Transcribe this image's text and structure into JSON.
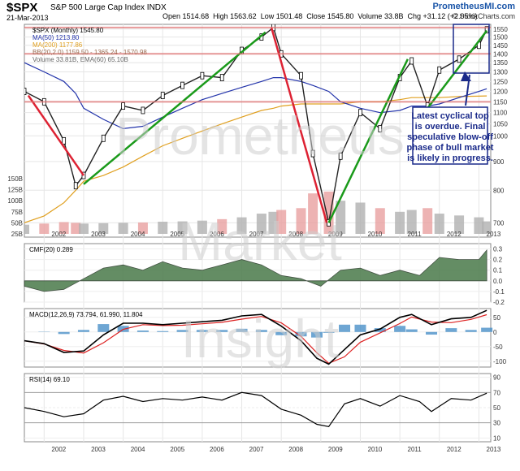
{
  "header": {
    "symbol": "$SPX",
    "name": "S&P 500 Large Cap Index  INDX",
    "date": "21-Mar-2013",
    "open_label": "Open",
    "open": "1514.68",
    "high_label": "High",
    "high": "1563.62",
    "low_label": "Low",
    "low": "1501.48",
    "close_label": "Close",
    "close": "1545.80",
    "volume_label": "Volume",
    "volume": "33.8B",
    "chg_label": "Chg",
    "chg": "+31.12 (+2.05%)",
    "site": "PrometheusMI.com",
    "source": "© StockCharts.com"
  },
  "watermark": [
    "Prometheus",
    "Market",
    "Insight"
  ],
  "annotation": [
    "Latest cyclical top",
    "is overdue. Final",
    "speculative blow-off",
    "phase of bull market",
    "is likely in progress."
  ],
  "colors": {
    "ma50": "#2233aa",
    "ma200": "#e0a020",
    "bb": "#9a6a50",
    "trend_up": "#1a9a1a",
    "trend_down": "#dd2233",
    "volume": "#b0b0b0",
    "cmf": "#4a7a4a",
    "macd_hist": "#4a90c8",
    "signal": "#dd2222"
  },
  "chart_data": [
    {
      "type": "line",
      "title": "$SPX (Monthly) 1545.80",
      "legend": [
        "$SPX (Monthly) 1545.80",
        "MA(50) 1213.80",
        "MA(200) 1177.86",
        "BB(20,2.0) 1159.50 - 1365.24 - 1570.98",
        "Volume 33.81B, EMA(60) 65.10B"
      ],
      "x_ticks": [
        "2002",
        "2003",
        "2004",
        "2005",
        "2006",
        "2007",
        "2008",
        "2009",
        "2010",
        "2011",
        "2012",
        "2013"
      ],
      "y_ticks": [
        700,
        800,
        900,
        1000,
        1050,
        1100,
        1150,
        1200,
        1250,
        1300,
        1350,
        1400,
        1450,
        1500,
        1550
      ],
      "volume_ticks": [
        "25B",
        "50B",
        "75B",
        "100B",
        "125B",
        "150B"
      ],
      "scale": "log",
      "ylim": [
        660,
        1580
      ],
      "x": [
        2001.5,
        2002.0,
        2002.5,
        2002.8,
        2003.0,
        2003.5,
        2004.0,
        2004.5,
        2005.0,
        2005.5,
        2006.0,
        2006.5,
        2007.0,
        2007.5,
        2007.8,
        2008.0,
        2008.5,
        2008.8,
        2009.2,
        2009.5,
        2010.0,
        2010.5,
        2011.0,
        2011.3,
        2011.7,
        2012.0,
        2012.5,
        2013.0,
        2013.2
      ],
      "close": [
        1200,
        1150,
        980,
        815,
        850,
        990,
        1130,
        1110,
        1180,
        1230,
        1280,
        1270,
        1420,
        1500,
        1560,
        1400,
        1280,
        930,
        700,
        920,
        1100,
        1030,
        1270,
        1360,
        1130,
        1310,
        1370,
        1450,
        1545
      ],
      "ma50": [
        1350,
        1300,
        1250,
        1190,
        1120,
        1070,
        1030,
        1040,
        1080,
        1120,
        1160,
        1190,
        1220,
        1250,
        1270,
        1270,
        1250,
        1230,
        1200,
        1150,
        1120,
        1100,
        1110,
        1130,
        1130,
        1140,
        1170,
        1200,
        1213
      ],
      "ma200": [
        700,
        720,
        760,
        800,
        830,
        850,
        880,
        920,
        960,
        990,
        1020,
        1050,
        1080,
        1110,
        1120,
        1130,
        1140,
        1140,
        1140,
        1140,
        1150,
        1150,
        1160,
        1170,
        1170,
        1170,
        1175,
        1177,
        1178
      ],
      "volume": [
        25,
        28,
        32,
        30,
        28,
        29,
        30,
        31,
        33,
        34,
        36,
        40,
        45,
        55,
        60,
        65,
        70,
        110,
        115,
        90,
        85,
        70,
        60,
        65,
        70,
        55,
        50,
        45,
        34
      ]
    },
    {
      "type": "area",
      "title": "CMF(20) 0.289",
      "y_ticks": [
        -0.2,
        -0.1,
        0.0,
        0.1,
        0.2,
        0.3
      ],
      "ylim": [
        -0.2,
        0.35
      ]
    },
    {
      "type": "line",
      "title": "MACD(12,26,9) 73.794, 61.990, 11.804",
      "y_ticks": [
        -100,
        -50,
        0,
        50
      ],
      "ylim": [
        -120,
        80
      ]
    },
    {
      "type": "line",
      "title": "RSI(14) 69.10",
      "y_ticks": [
        10,
        30,
        50,
        70,
        90
      ],
      "ylim": [
        5,
        95
      ]
    }
  ]
}
